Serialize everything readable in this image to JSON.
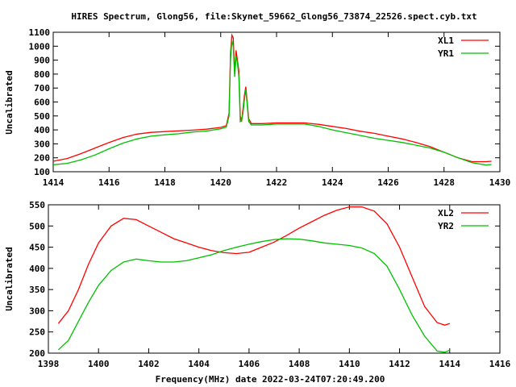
{
  "chart_data": [
    {
      "type": "line",
      "title": "HIRES Spectrum, Glong56, file:Skynet_59662_Glong56_73874_22526.spect.cyb.txt",
      "xlabel": "",
      "ylabel": "Uncalibrated",
      "xlim": [
        1414,
        1430
      ],
      "ylim": [
        100,
        1100
      ],
      "xticks": [
        "1414",
        "1416",
        "1418",
        "1420",
        "1422",
        "1424",
        "1426",
        "1428",
        "1430"
      ],
      "yticks": [
        "100",
        "200",
        "300",
        "400",
        "500",
        "600",
        "700",
        "800",
        "900",
        "1000",
        "1100"
      ],
      "legend": "top-right",
      "grid": false,
      "series": [
        {
          "name": "XL1",
          "color": "#ff0000",
          "x": [
            1414,
            1414.5,
            1415,
            1415.5,
            1416,
            1416.5,
            1417,
            1417.5,
            1418,
            1419,
            1419.5,
            1420,
            1420.2,
            1420.3,
            1420.35,
            1420.4,
            1420.45,
            1420.5,
            1420.55,
            1420.6,
            1420.65,
            1420.7,
            1420.75,
            1420.8,
            1420.85,
            1420.9,
            1420.95,
            1421,
            1421.1,
            1421.5,
            1422,
            1423,
            1423.5,
            1424,
            1424.5,
            1425,
            1425.5,
            1426,
            1426.5,
            1427,
            1427.5,
            1428,
            1428.5,
            1429,
            1429.5,
            1429.7
          ],
          "y": [
            175,
            195,
            230,
            270,
            310,
            345,
            370,
            382,
            388,
            398,
            405,
            418,
            430,
            520,
            950,
            1080,
            1060,
            800,
            970,
            900,
            820,
            500,
            460,
            550,
            650,
            710,
            600,
            480,
            445,
            445,
            450,
            450,
            440,
            425,
            410,
            390,
            375,
            355,
            335,
            310,
            280,
            240,
            200,
            172,
            172,
            175
          ]
        },
        {
          "name": "YR1",
          "color": "#00c000",
          "x": [
            1414,
            1414.5,
            1415,
            1415.5,
            1416,
            1416.5,
            1417,
            1417.5,
            1418,
            1418.5,
            1419,
            1419.5,
            1420,
            1420.2,
            1420.3,
            1420.35,
            1420.4,
            1420.45,
            1420.5,
            1420.55,
            1420.6,
            1420.65,
            1420.7,
            1420.75,
            1420.8,
            1420.85,
            1420.9,
            1420.95,
            1421,
            1421.1,
            1421.5,
            1422,
            1423,
            1423.5,
            1424,
            1424.5,
            1425,
            1425.5,
            1426,
            1426.5,
            1427,
            1427.5,
            1428,
            1428.5,
            1429,
            1429.5,
            1429.7
          ],
          "y": [
            150,
            160,
            185,
            220,
            265,
            305,
            335,
            355,
            365,
            372,
            385,
            392,
            408,
            420,
            500,
            900,
            1040,
            1000,
            780,
            930,
            880,
            780,
            460,
            470,
            520,
            620,
            690,
            580,
            460,
            435,
            435,
            442,
            442,
            425,
            400,
            380,
            360,
            340,
            325,
            310,
            290,
            270,
            240,
            200,
            165,
            148,
            152
          ]
        }
      ]
    },
    {
      "type": "line",
      "title": "",
      "xlabel": "Frequency(MHz) date 2022-03-24T07:20:49.200",
      "ylabel": "Uncalibrated",
      "xlim": [
        1398,
        1416
      ],
      "ylim": [
        200,
        550
      ],
      "xticks": [
        "1398",
        "1400",
        "1402",
        "1404",
        "1406",
        "1408",
        "1410",
        "1412",
        "1414",
        "1416"
      ],
      "yticks": [
        "200",
        "250",
        "300",
        "350",
        "400",
        "450",
        "500",
        "550"
      ],
      "legend": "top-right",
      "grid": false,
      "series": [
        {
          "name": "XL2",
          "color": "#ff0000",
          "x": [
            1398.4,
            1398.8,
            1399.2,
            1399.6,
            1400,
            1400.5,
            1401,
            1401.5,
            1402,
            1402.5,
            1403,
            1403.5,
            1404,
            1404.5,
            1405,
            1405.5,
            1406,
            1406.5,
            1407,
            1407.5,
            1408,
            1408.5,
            1409,
            1409.5,
            1410,
            1410.5,
            1411,
            1411.5,
            1412,
            1412.5,
            1413,
            1413.5,
            1413.8,
            1414
          ],
          "y": [
            270,
            300,
            350,
            410,
            460,
            500,
            518,
            515,
            500,
            485,
            470,
            460,
            450,
            442,
            437,
            435,
            438,
            450,
            462,
            478,
            495,
            510,
            525,
            537,
            545,
            545,
            535,
            505,
            450,
            380,
            310,
            272,
            266,
            270
          ]
        },
        {
          "name": "YR2",
          "color": "#00c000",
          "x": [
            1398.4,
            1398.8,
            1399.2,
            1399.6,
            1400,
            1400.5,
            1401,
            1401.5,
            1402,
            1402.5,
            1403,
            1403.5,
            1404,
            1404.5,
            1405,
            1405.5,
            1406,
            1406.5,
            1407,
            1407.5,
            1408,
            1408.5,
            1409,
            1409.5,
            1410,
            1410.5,
            1411,
            1411.5,
            1412,
            1412.5,
            1413,
            1413.5,
            1413.8,
            1414
          ],
          "y": [
            208,
            230,
            275,
            320,
            360,
            395,
            415,
            422,
            418,
            415,
            415,
            418,
            425,
            432,
            442,
            450,
            457,
            463,
            468,
            470,
            469,
            465,
            460,
            457,
            454,
            448,
            435,
            405,
            350,
            290,
            240,
            205,
            202,
            207
          ]
        }
      ]
    }
  ]
}
